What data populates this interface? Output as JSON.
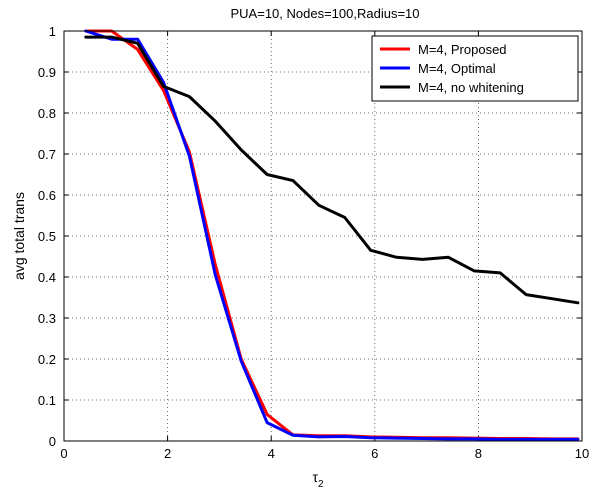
{
  "chart_data": {
    "type": "line",
    "title": "PUA=10, Nodes=100,Radius=10",
    "xlabel": "τ",
    "xlabel_subscript": "2",
    "ylabel": "avg total trans",
    "xlim": [
      0,
      10
    ],
    "ylim": [
      0,
      1
    ],
    "xticks": [
      "0",
      "2",
      "4",
      "6",
      "8",
      "10"
    ],
    "yticks": [
      "0",
      "0.1",
      "0.2",
      "0.3",
      "0.4",
      "0.5",
      "0.6",
      "0.7",
      "0.8",
      "0.9",
      "1"
    ],
    "grid": true,
    "legend_position": "top-right",
    "series": [
      {
        "name": "M=4, Proposed",
        "color": "#ff0000",
        "x": [
          0.42,
          0.92,
          1.42,
          1.92,
          2.42,
          2.92,
          3.42,
          3.92,
          4.42,
          4.92,
          5.42,
          5.92,
          6.42,
          6.92,
          7.42,
          7.92,
          8.42,
          8.92,
          9.42,
          9.92
        ],
        "y": [
          1.0,
          1.0,
          0.955,
          0.855,
          0.705,
          0.43,
          0.2,
          0.065,
          0.015,
          0.013,
          0.013,
          0.01,
          0.009,
          0.008,
          0.008,
          0.007,
          0.006,
          0.006,
          0.005,
          0.005
        ]
      },
      {
        "name": "M=4, Optimal",
        "color": "#0000ff",
        "x": [
          0.42,
          0.92,
          1.42,
          1.92,
          2.42,
          2.92,
          3.42,
          3.92,
          4.42,
          4.92,
          5.42,
          5.92,
          6.42,
          6.92,
          7.42,
          7.92,
          8.42,
          8.92,
          9.42,
          9.92
        ],
        "y": [
          1.0,
          0.98,
          0.98,
          0.875,
          0.695,
          0.405,
          0.195,
          0.045,
          0.014,
          0.01,
          0.011,
          0.008,
          0.007,
          0.006,
          0.005,
          0.005,
          0.004,
          0.004,
          0.004,
          0.004
        ]
      },
      {
        "name": "M=4, no whitening",
        "color": "#000000",
        "x": [
          0.42,
          0.92,
          1.42,
          1.92,
          2.42,
          2.92,
          3.42,
          3.92,
          4.42,
          4.92,
          5.42,
          5.92,
          6.42,
          6.92,
          7.42,
          7.92,
          8.42,
          8.92,
          9.42,
          9.92
        ],
        "y": [
          0.985,
          0.985,
          0.97,
          0.865,
          0.84,
          0.78,
          0.71,
          0.65,
          0.635,
          0.575,
          0.545,
          0.465,
          0.448,
          0.443,
          0.448,
          0.415,
          0.41,
          0.357,
          0.347,
          0.337
        ]
      }
    ]
  }
}
